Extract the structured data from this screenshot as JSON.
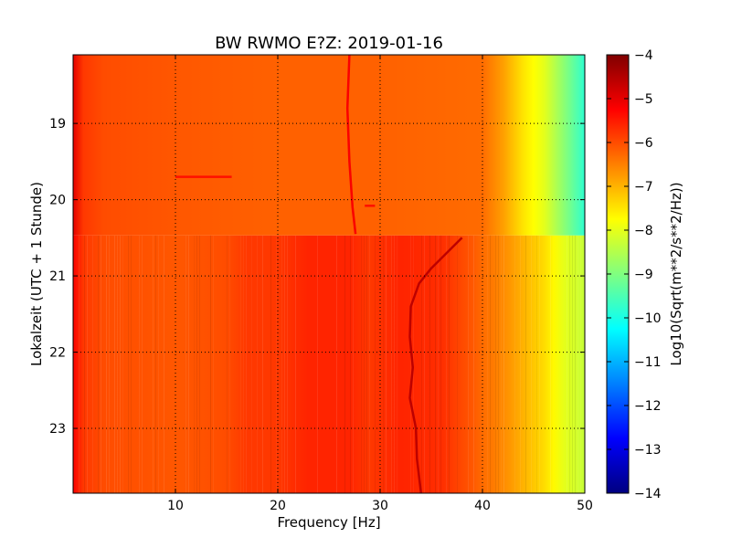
{
  "chart_data": {
    "type": "heatmap",
    "title": "BW RWMO E?Z: 2019-01-16",
    "xlabel": "Frequency [Hz]",
    "ylabel": "Lokalzeit (UTC + 1 Stunde)",
    "xlim": [
      0,
      50
    ],
    "ylim": [
      18.1,
      23.85
    ],
    "x_ticks": [
      10,
      20,
      30,
      40,
      50
    ],
    "y_ticks": [
      19,
      20,
      21,
      22,
      23
    ],
    "grid": true,
    "colormap": "jet",
    "colorbar": {
      "label": "Log10(Sqrt(m**2/s**2/Hz))",
      "range": [
        -14,
        -4
      ],
      "ticks": [
        -4,
        -5,
        -6,
        -7,
        -8,
        -9,
        -10,
        -11,
        -12,
        -13,
        -14
      ]
    },
    "regime_change_hour": 20.47,
    "profile_before": {
      "frequency": [
        0,
        1,
        3,
        10,
        20,
        30,
        40,
        42,
        44,
        46,
        48,
        50
      ],
      "value": [
        -5.0,
        -5.8,
        -6.0,
        -6.1,
        -6.2,
        -6.2,
        -6.3,
        -6.8,
        -7.5,
        -8.0,
        -8.9,
        -9.8
      ]
    },
    "profile_after": {
      "frequency": [
        0,
        1,
        3,
        10,
        15,
        17,
        20,
        23,
        25,
        27,
        29,
        32,
        36,
        39,
        40,
        42,
        44,
        46,
        48,
        50
      ],
      "value": [
        -5.2,
        -5.8,
        -6.0,
        -6.1,
        -6.0,
        -5.8,
        -5.8,
        -5.6,
        -5.6,
        -5.6,
        -5.8,
        -5.6,
        -5.7,
        -6.1,
        -6.3,
        -6.6,
        -7.0,
        -7.4,
        -8.0,
        -8.3
      ]
    },
    "traces": [
      {
        "points": [
          [
            27.0,
            18.1
          ],
          [
            26.8,
            18.8
          ],
          [
            27.0,
            19.5
          ],
          [
            27.3,
            20.1
          ],
          [
            27.6,
            20.45
          ]
        ],
        "value": -5.2
      },
      {
        "points": [
          [
            10.0,
            19.7
          ],
          [
            15.5,
            19.7
          ]
        ],
        "value": -5.4
      },
      {
        "points": [
          [
            38.0,
            20.5
          ],
          [
            36.5,
            20.7
          ],
          [
            35.0,
            20.9
          ],
          [
            33.8,
            21.1
          ],
          [
            33.0,
            21.4
          ],
          [
            32.9,
            21.8
          ],
          [
            33.2,
            22.2
          ],
          [
            32.9,
            22.6
          ],
          [
            33.5,
            23.0
          ],
          [
            33.6,
            23.4
          ],
          [
            34.0,
            23.85
          ]
        ],
        "value": -4.6
      },
      {
        "points": [
          [
            28.5,
            20.08
          ],
          [
            29.5,
            20.08
          ]
        ],
        "value": -5.4
      }
    ]
  }
}
